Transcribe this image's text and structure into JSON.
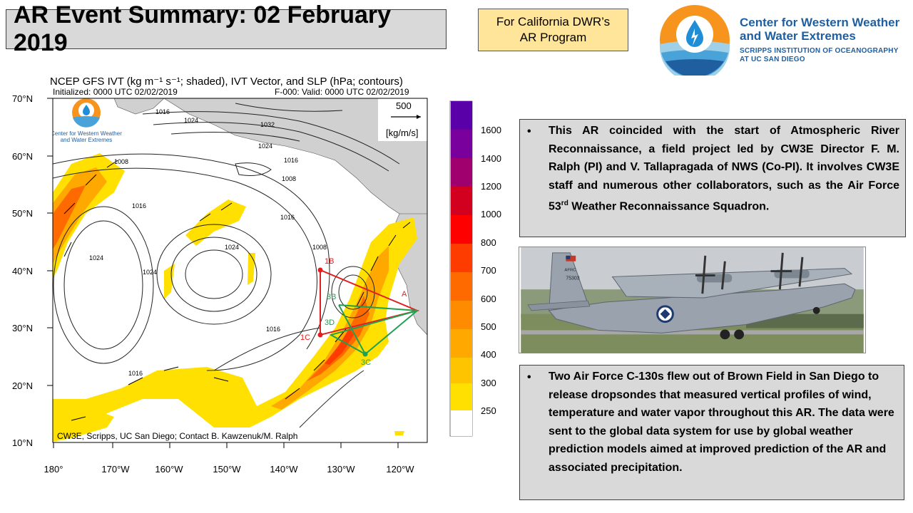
{
  "header": {
    "title": "AR Event Summary: 02 February 2019",
    "tag_line1": "For California DWR’s",
    "tag_line2": "AR Program"
  },
  "logo": {
    "name_line1": "Center for Western Weather",
    "name_line2": "and Water Extremes",
    "inst_line1": "SCRIPPS INSTITUTION OF OCEANOGRAPHY",
    "inst_line2": "AT UC SAN DIEGO",
    "accent_color": "#f7941d",
    "brand_color": "#1f5fa0"
  },
  "map": {
    "title": "NCEP GFS IVT (kg m⁻¹ s⁻¹; shaded), IVT Vector, and SLP (hPa; contours)",
    "initialized": "Initialized: 0000 UTC 02/02/2019",
    "valid": "F-000: Valid: 0000 UTC 02/02/2019",
    "vector_ref_value": "500",
    "vector_ref_unit": "[kg/m/s]",
    "inset_logo_line1": "Center for Western Weather",
    "inset_logo_line2": "and Water Extremes",
    "credit": "CW3E, Scripps, UC San Diego; Contact B. Kawzenuk/M. Ralph",
    "lat_labels": [
      "70°N",
      "60°N",
      "50°N",
      "40°N",
      "30°N",
      "20°N",
      "10°N"
    ],
    "lon_labels": [
      "180°",
      "170°W",
      "160°W",
      "150°W",
      "140°W",
      "130°W",
      "120°W"
    ],
    "isobar_labels": [
      "1024",
      "1016",
      "1032",
      "1024",
      "1016",
      "1008",
      "1016",
      "1008",
      "1016",
      "1024",
      "1024",
      "1016",
      "1008",
      "1024",
      "1016"
    ],
    "flight_points_red": [
      "1B",
      "A",
      "1C"
    ],
    "flight_points_green": [
      "3B",
      "3D",
      "3C"
    ],
    "flight_red_color": "#e02020",
    "flight_green_color": "#20a050",
    "colorbar": {
      "labels": [
        "1600",
        "1400",
        "1200",
        "1000",
        "800",
        "700",
        "600",
        "500",
        "400",
        "300",
        "250"
      ],
      "colors": [
        "#ffffff",
        "#ffff00",
        "#ffe000",
        "#ffc400",
        "#ffa800",
        "#ff8c00",
        "#ff6a00",
        "#ff3c00",
        "#ff0000",
        "#d2001e",
        "#a0006e",
        "#7a009e",
        "#5a00a8"
      ]
    }
  },
  "bullets": [
    {
      "marker": "•",
      "text_pre": "This AR coincided with the start of Atmospheric River Reconnaissance, a field project led by CW3E Director F. M. Ralph (PI) and V. Tallapragada of NWS (Co-PI). It involves CW3E staff and numerous other collaborators, such as the Air Force 53",
      "text_sup": "rd",
      "text_post": " Weather Reconnaissance Squadron."
    },
    {
      "marker": "•",
      "text": "Two Air Force C-130s flew out of Brown Field in San Diego to release dropsondes that measured vertical profiles of wind, temperature and water vapor throughout this AR. The data were sent to the global data system for use by global weather prediction models aimed at improved prediction of the AR and associated precipitation."
    }
  ],
  "photo": {
    "tail_line1": "AFRC",
    "tail_line2": "75303"
  }
}
